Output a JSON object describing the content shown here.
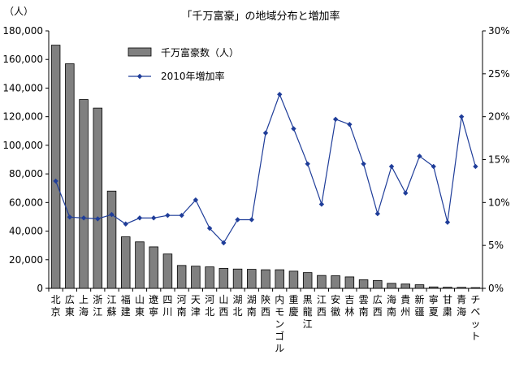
{
  "chart_data": {
    "type": "bar",
    "title": "「千万富豪」の地域分布と増加率",
    "ylabel_left": "（人）",
    "ylim_left": [
      0,
      180000
    ],
    "ylim_right": [
      0,
      30
    ],
    "left_ticks": [
      "180,000",
      "160,000",
      "140,000",
      "120,000",
      "100,000",
      "80,000",
      "60,000",
      "40,000",
      "20,000",
      "0"
    ],
    "right_ticks": [
      "30%",
      "25%",
      "20%",
      "15%",
      "10%",
      "5%",
      "0%"
    ],
    "categories": [
      "北京",
      "広東",
      "上海",
      "浙江",
      "江蘇",
      "福建",
      "山東",
      "遼寧",
      "四川",
      "河南",
      "天津",
      "河北",
      "山西",
      "湖北",
      "湖南",
      "陝西",
      "内モンゴル",
      "重慶",
      "黒龍江",
      "江西",
      "安徽",
      "吉林",
      "雲南",
      "広西",
      "海南",
      "貴州",
      "新疆",
      "寧夏",
      "甘粛",
      "青海",
      "チベット"
    ],
    "series": [
      {
        "name": "千万富豪数（人）",
        "kind": "bar",
        "axis": "left",
        "color": "#808080",
        "values": [
          170000,
          157000,
          132000,
          126000,
          68000,
          36000,
          32500,
          29000,
          24000,
          16000,
          15500,
          15000,
          14000,
          13500,
          13300,
          13000,
          13000,
          12000,
          11000,
          9000,
          8800,
          8000,
          6000,
          5500,
          3500,
          3000,
          2500,
          1000,
          800,
          700,
          500
        ]
      },
      {
        "name": "2010年増加率",
        "kind": "line",
        "axis": "right",
        "color": "#1f3d99",
        "values": [
          12.5,
          8.3,
          8.2,
          8.1,
          8.6,
          7.5,
          8.2,
          8.2,
          8.5,
          8.5,
          10.3,
          7.0,
          5.3,
          8.0,
          8.0,
          18.1,
          22.6,
          18.6,
          14.5,
          9.8,
          19.7,
          19.1,
          14.5,
          8.7,
          14.2,
          11.1,
          15.4,
          14.2,
          7.7,
          20.0,
          14.2
        ]
      }
    ],
    "legend": {
      "position": "top-center-left"
    },
    "grid": false
  }
}
